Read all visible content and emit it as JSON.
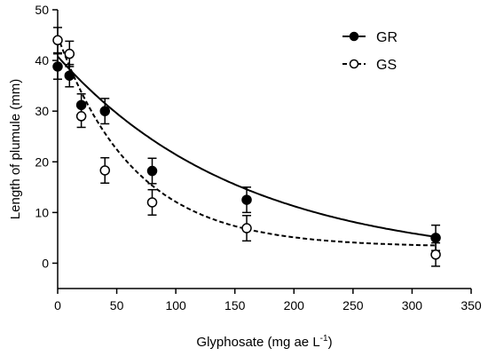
{
  "chart_data": {
    "type": "scatter",
    "xlabel": "Glyphosate (mg ae L",
    "xlabel_sup": "-1",
    "xlabel_suffix": ")",
    "ylabel": "Length of plumule (mm)",
    "xlim": [
      0,
      350
    ],
    "ylim": [
      -5,
      50
    ],
    "xticks": [
      0,
      50,
      100,
      150,
      200,
      250,
      300,
      350
    ],
    "yticks": [
      0,
      10,
      20,
      30,
      40,
      50
    ],
    "grid": false,
    "legend_position": "top-right",
    "series": [
      {
        "name": "GR",
        "marker": "filled-circle",
        "line": "solid",
        "x": [
          0,
          10,
          20,
          40,
          80,
          160,
          320
        ],
        "y": [
          38.8,
          37.0,
          31.2,
          30.0,
          18.2,
          12.5,
          5.0
        ],
        "err": [
          2.5,
          2.2,
          2.2,
          2.5,
          2.5,
          2.5,
          2.5
        ],
        "fit": [
          [
            0,
            40.8
          ],
          [
            320,
            5.2
          ]
        ]
      },
      {
        "name": "GS",
        "marker": "open-circle",
        "line": "dashed",
        "x": [
          0,
          10,
          20,
          40,
          80,
          160,
          320
        ],
        "y": [
          44.0,
          41.3,
          29.0,
          18.3,
          12.0,
          6.9,
          1.7
        ],
        "err": [
          2.5,
          2.5,
          2.2,
          2.5,
          2.5,
          2.5,
          2.3
        ],
        "fit": [
          [
            0,
            44.8
          ],
          [
            320,
            3.5
          ]
        ]
      }
    ]
  }
}
